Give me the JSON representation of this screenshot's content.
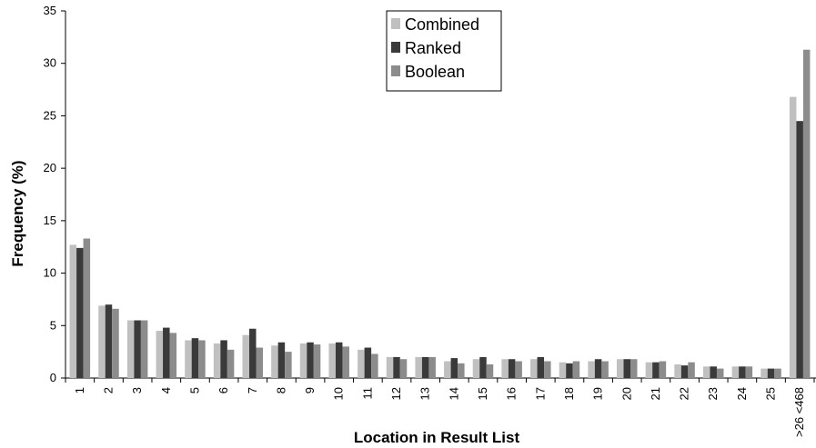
{
  "chart_data": {
    "type": "bar",
    "title": "",
    "xlabel": "Location in Result List",
    "ylabel": "Frequency (%)",
    "ylim": [
      0,
      35
    ],
    "yticks": [
      0,
      5,
      10,
      15,
      20,
      25,
      30,
      35
    ],
    "grid": false,
    "legend_position": "top-center",
    "categories": [
      "1",
      "2",
      "3",
      "4",
      "5",
      "6",
      "7",
      "8",
      "9",
      "10",
      "11",
      "12",
      "13",
      "14",
      "15",
      "16",
      "17",
      "18",
      "19",
      "20",
      "21",
      "22",
      "23",
      "24",
      "25",
      ">26 <468"
    ],
    "series": [
      {
        "name": "Combined",
        "color": "#c0c0c0",
        "values": [
          12.7,
          6.9,
          5.5,
          4.5,
          3.6,
          3.3,
          4.1,
          3.1,
          3.3,
          3.3,
          2.7,
          2.0,
          2.0,
          1.6,
          1.8,
          1.8,
          1.8,
          1.5,
          1.6,
          1.8,
          1.5,
          1.3,
          1.1,
          1.1,
          0.9,
          26.8
        ]
      },
      {
        "name": "Ranked",
        "color": "#3a3a3a",
        "values": [
          12.4,
          7.0,
          5.5,
          4.8,
          3.8,
          3.6,
          4.7,
          3.4,
          3.4,
          3.4,
          2.9,
          2.0,
          2.0,
          1.9,
          2.0,
          1.8,
          2.0,
          1.4,
          1.8,
          1.8,
          1.5,
          1.2,
          1.1,
          1.1,
          0.9,
          24.5
        ]
      },
      {
        "name": "Boolean",
        "color": "#8c8c8c",
        "values": [
          13.3,
          6.6,
          5.5,
          4.3,
          3.6,
          2.7,
          2.9,
          2.5,
          3.2,
          3.0,
          2.3,
          1.8,
          2.0,
          1.4,
          1.3,
          1.6,
          1.6,
          1.6,
          1.6,
          1.8,
          1.6,
          1.5,
          0.9,
          1.1,
          0.9,
          31.3
        ]
      }
    ]
  }
}
